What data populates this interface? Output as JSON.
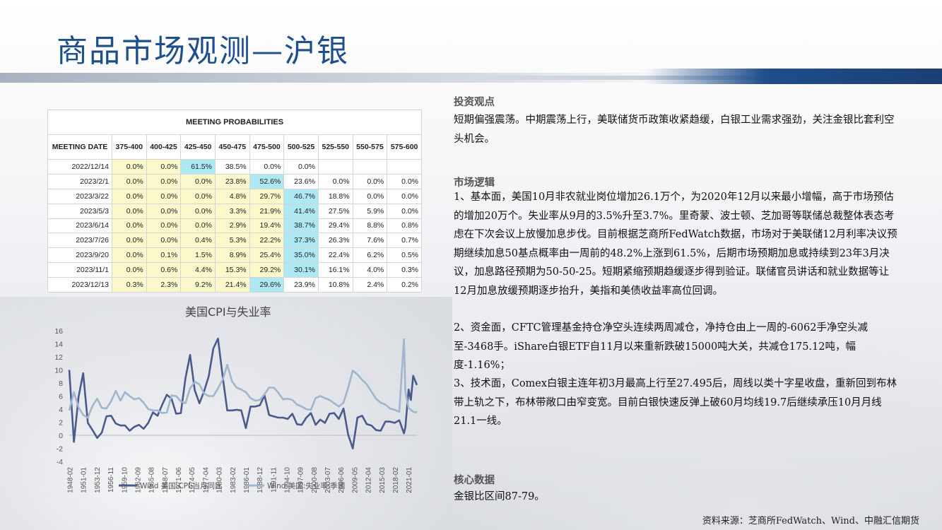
{
  "title": "商品市场观测—沪银",
  "table": {
    "caption": "MEETING PROBABILITIES",
    "headers": [
      "MEETING DATE",
      "375-400",
      "400-425",
      "425-450",
      "450-475",
      "475-500",
      "500-525",
      "525-550",
      "550-575",
      "575-600"
    ],
    "rows": [
      {
        "date": "2022/12/14",
        "cells": [
          "0.0%",
          "0.0%",
          "61.5%",
          "38.5%",
          "0.0%",
          "0.0%",
          "",
          "",
          ""
        ],
        "fills": [
          "y",
          "y",
          "b",
          "",
          "",
          "",
          "",
          "",
          ""
        ]
      },
      {
        "date": "2023/2/1",
        "cells": [
          "0.0%",
          "0.0%",
          "0.0%",
          "23.8%",
          "52.6%",
          "23.6%",
          "0.0%",
          "0.0%",
          "0.0%"
        ],
        "fills": [
          "y",
          "y",
          "y",
          "y",
          "b",
          "",
          "",
          "",
          ""
        ]
      },
      {
        "date": "2023/3/22",
        "cells": [
          "0.0%",
          "0.0%",
          "0.0%",
          "4.8%",
          "29.7%",
          "46.7%",
          "18.8%",
          "0.0%",
          "0.0%"
        ],
        "fills": [
          "y",
          "y",
          "y",
          "y",
          "y",
          "b",
          "",
          "",
          ""
        ]
      },
      {
        "date": "2023/5/3",
        "cells": [
          "0.0%",
          "0.0%",
          "0.0%",
          "3.3%",
          "21.9%",
          "41.4%",
          "27.5%",
          "5.9%",
          "0.0%"
        ],
        "fills": [
          "y",
          "y",
          "y",
          "y",
          "y",
          "b",
          "",
          "",
          ""
        ]
      },
      {
        "date": "2023/6/14",
        "cells": [
          "0.0%",
          "0.0%",
          "0.0%",
          "2.9%",
          "19.4%",
          "38.7%",
          "29.4%",
          "8.8%",
          "0.8%"
        ],
        "fills": [
          "y",
          "y",
          "y",
          "y",
          "y",
          "b",
          "",
          "",
          ""
        ]
      },
      {
        "date": "2023/7/26",
        "cells": [
          "0.0%",
          "0.0%",
          "0.4%",
          "5.3%",
          "22.2%",
          "37.3%",
          "26.3%",
          "7.6%",
          "0.7%"
        ],
        "fills": [
          "y",
          "y",
          "y",
          "y",
          "y",
          "b",
          "",
          "",
          ""
        ]
      },
      {
        "date": "2023/9/20",
        "cells": [
          "0.0%",
          "0.1%",
          "1.5%",
          "8.9%",
          "25.4%",
          "35.0%",
          "22.4%",
          "6.2%",
          "0.5%"
        ],
        "fills": [
          "y",
          "y",
          "y",
          "y",
          "y",
          "b",
          "",
          "",
          ""
        ]
      },
      {
        "date": "2023/11/1",
        "cells": [
          "0.0%",
          "0.6%",
          "4.4%",
          "15.3%",
          "29.2%",
          "30.1%",
          "16.1%",
          "4.0%",
          "0.3%"
        ],
        "fills": [
          "y",
          "y",
          "y",
          "y",
          "y",
          "b",
          "",
          "",
          ""
        ]
      },
      {
        "date": "2023/12/13",
        "cells": [
          "0.3%",
          "2.3%",
          "9.2%",
          "21.4%",
          "29.6%",
          "23.9%",
          "10.8%",
          "2.4%",
          "0.2%"
        ],
        "fills": [
          "y",
          "y",
          "y",
          "y",
          "b",
          "",
          "",
          "",
          ""
        ]
      }
    ]
  },
  "chart_data": {
    "type": "line",
    "title": "美国CPI与失业率",
    "ylim": [
      -4,
      16
    ],
    "yticks": [
      -4,
      -2,
      0,
      2,
      4,
      6,
      8,
      10,
      12,
      14,
      16
    ],
    "xticks": [
      "1948-02",
      "1951-01",
      "1953-12",
      "1956-11",
      "1959-10",
      "1962-09",
      "1965-08",
      "1968-07",
      "1971-06",
      "1974-05",
      "1977-04",
      "1980-03",
      "1983-02",
      "1986-01",
      "1988-12",
      "1991-11",
      "1994-10",
      "1997-09",
      "2000-08",
      "2003-07",
      "2006-06",
      "2009-05",
      "2012-04",
      "2015-03",
      "2018-02",
      "2021-01"
    ],
    "x": [
      1948,
      1949,
      1950,
      1951,
      1952,
      1953,
      1954,
      1955,
      1956,
      1957,
      1958,
      1959,
      1960,
      1961,
      1962,
      1963,
      1964,
      1965,
      1966,
      1967,
      1968,
      1969,
      1970,
      1971,
      1972,
      1973,
      1974,
      1975,
      1976,
      1977,
      1978,
      1979,
      1980,
      1981,
      1982,
      1983,
      1984,
      1985,
      1986,
      1987,
      1988,
      1989,
      1990,
      1991,
      1992,
      1993,
      1994,
      1995,
      1996,
      1997,
      1998,
      1999,
      2000,
      2001,
      2002,
      2003,
      2004,
      2005,
      2006,
      2007,
      2008,
      2009,
      2010,
      2011,
      2012,
      2013,
      2014,
      2015,
      2016,
      2017,
      2018,
      2019,
      2020,
      2020.3,
      2021,
      2021.5,
      2022,
      2022.5,
      2022.8
    ],
    "series": [
      {
        "name": "Wind 美国:CPI:当月同比",
        "color": "#4a5a8c",
        "values": [
          10,
          -1,
          5.9,
          9.5,
          1.9,
          0.8,
          -0.4,
          0.4,
          2.9,
          3,
          1.8,
          1.5,
          1.5,
          0.7,
          1.3,
          1.6,
          1,
          1.9,
          3.5,
          3,
          4.7,
          6.2,
          5.6,
          3.3,
          3.4,
          8.7,
          12.3,
          6.9,
          4.9,
          6.7,
          9,
          13.3,
          14.8,
          9,
          3.8,
          3.8,
          3.9,
          3.8,
          1.1,
          4.4,
          4.4,
          4.6,
          6.1,
          3.1,
          2.9,
          2.7,
          2.7,
          2.5,
          3.3,
          1.7,
          1.6,
          2.7,
          3.4,
          1.6,
          2.4,
          1.9,
          3.3,
          3.4,
          2.5,
          4.1,
          0.1,
          -2,
          2.7,
          3,
          1.7,
          1.5,
          0.8,
          0.7,
          2.1,
          2.1,
          1.9,
          2.3,
          0.3,
          1.2,
          7,
          5.4,
          9.1,
          8.2,
          7.7
        ]
      },
      {
        "name": "Wind 美国:失业率:季调",
        "color": "#9fb6cc",
        "values": [
          3.8,
          6.6,
          4.3,
          3.1,
          2.7,
          4.5,
          5.6,
          4.2,
          4.1,
          5.2,
          6.8,
          5.3,
          6.6,
          6.0,
          5.5,
          5.7,
          5.0,
          4.0,
          3.8,
          3.8,
          3.4,
          3.5,
          6.1,
          6.0,
          5.2,
          4.9,
          7.2,
          8.2,
          7.8,
          6.4,
          6.0,
          6.0,
          7.2,
          8.5,
          10.8,
          8.3,
          7.3,
          7.0,
          6.6,
          5.7,
          5.3,
          5.4,
          6.3,
          7.3,
          7.3,
          6.5,
          5.5,
          5.6,
          5.4,
          4.7,
          4.4,
          4.0,
          3.9,
          5.7,
          6.0,
          5.7,
          5.4,
          4.9,
          4.4,
          5.0,
          7.3,
          9.9,
          9.3,
          8.5,
          7.8,
          6.7,
          5.6,
          5.0,
          4.7,
          4.1,
          3.9,
          3.6,
          14.7,
          6.7,
          4.2,
          3.9,
          3.6,
          3.5,
          3.7
        ]
      }
    ],
    "legend_position": "bottom"
  },
  "right": {
    "h1": "投资观点",
    "p1": "短期偏强震荡。中期震荡上行，美联储货币政策收紧趋缓，白银工业需求强劲，关注金银比套利空头机会。",
    "h2": "市场逻辑",
    "p2": "1、基本面，美国10月非农就业岗位增加26.1万个，为2020年12月以来最小增幅，高于市场预估的增加20万个。失业率从9月的3.5%升至3.7%。里奇蒙、波士顿、芝加哥等联储总裁整体表态考虑在下次会议上放慢加息步伐。目前根据芝商所FedWatch数据，市场对于美联储12月利率决议预期继续加息50基点概率由一周前的48.2%上涨到61.5%，后期市场预期加息或持续到23年3月决议，加息路径预期为50-50-25。短期紧缩预期趋缓逐步得到验证。联储官员讲话和就业数据等让12月加息放缓预期逐步抬升，美指和美债收益率高位回调。",
    "p3": "2、资金面，CFTC管理基金持仓净空头连续两周减仓，净持仓由上一周的-6062手净空头减至-3468手。iShare白银ETF自11月以来重新跌破15000吨大关，共减仓175.12吨，幅度-1.16%；",
    "p4": "3、技术面，Comex白银主连年初3月最高上行至27.495后，周线以类十字星收盘，重新回到布林带上轨之下，布林带敞口由窄变宽。目前白银快速反弹上破60月均线19.7后继续承压10月月线21.1一线。",
    "h3": "核心数据",
    "p5": "金银比区间87-79。"
  },
  "source": "资料来源：芝商所FedWatch、Wind、中融汇信期货"
}
